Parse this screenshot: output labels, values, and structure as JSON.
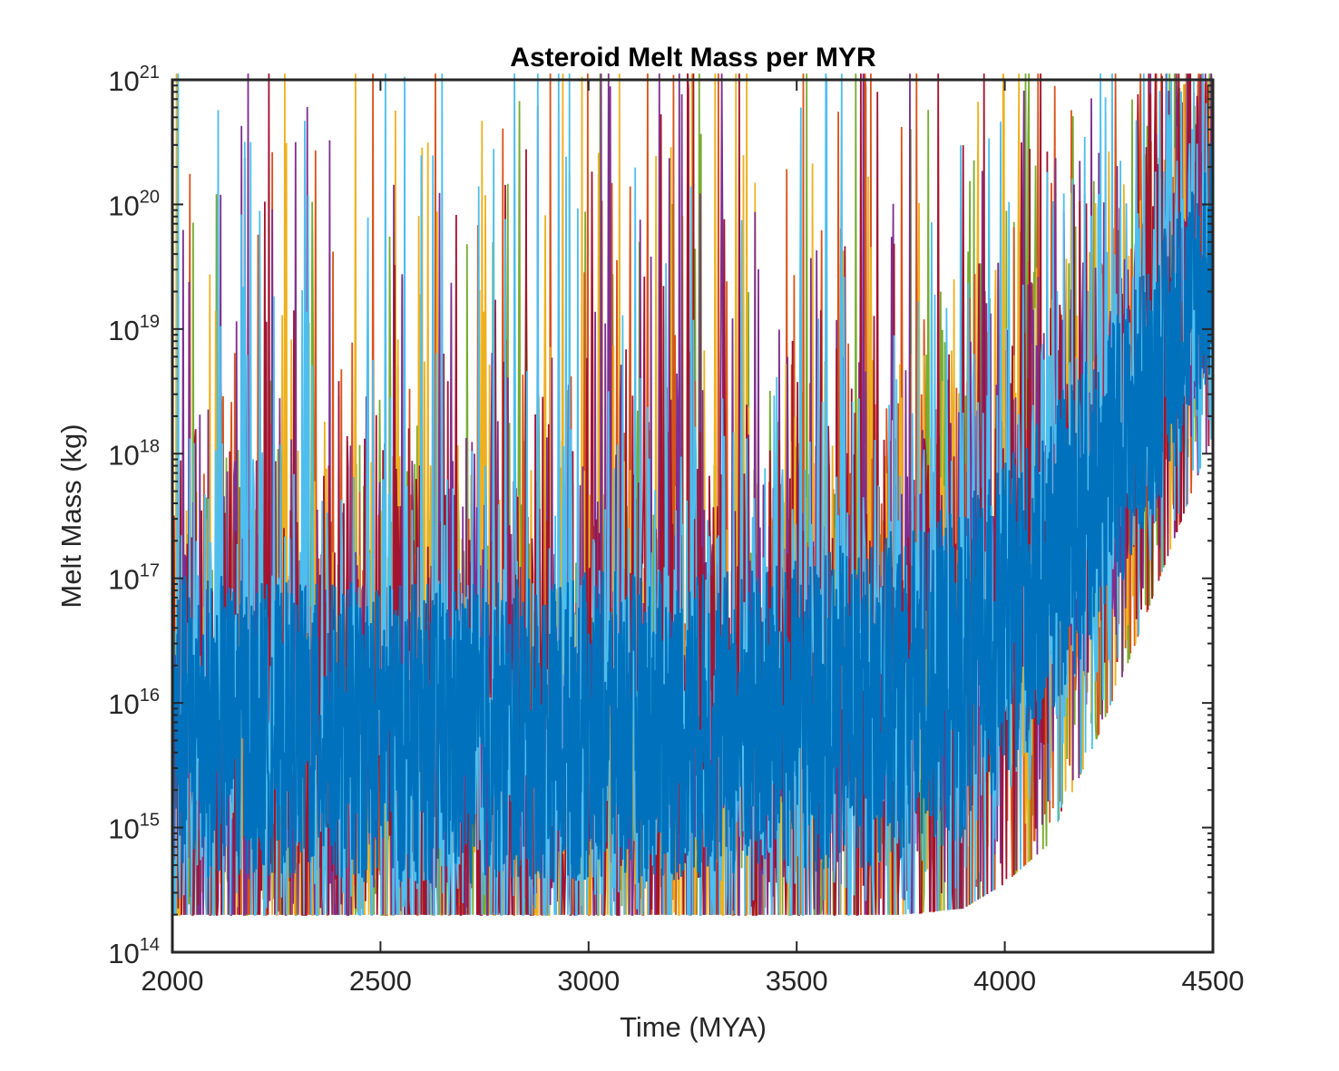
{
  "chart_data": {
    "type": "line",
    "title": "Asteroid Melt Mass per MYR",
    "xlabel": "Time (MYA)",
    "ylabel": "Melt Mass (kg)",
    "xlim": [
      2000,
      4500
    ],
    "ylim": [
      100000000000000.0,
      1e+21
    ],
    "yscale": "log",
    "grid": false,
    "legend": "none",
    "x_ticks": [
      "2000",
      "2500",
      "3000",
      "3500",
      "4000",
      "4500"
    ],
    "x_tick_values": [
      2000,
      2500,
      3000,
      3500,
      4000,
      4500
    ],
    "y_ticks": [
      {
        "base": "10",
        "exp": "14",
        "value": 100000000000000.0
      },
      {
        "base": "10",
        "exp": "15",
        "value": 1000000000000000.0
      },
      {
        "base": "10",
        "exp": "16",
        "value": 1e+16
      },
      {
        "base": "10",
        "exp": "17",
        "value": 1e+17
      },
      {
        "base": "10",
        "exp": "18",
        "value": 1e+18
      },
      {
        "base": "10",
        "exp": "19",
        "value": 1e+19
      },
      {
        "base": "10",
        "exp": "20",
        "value": 1e+20
      },
      {
        "base": "10",
        "exp": "21",
        "value": 1e+21
      }
    ],
    "series_colors": [
      "#77AC30",
      "#D95319",
      "#EDB120",
      "#7E2F8E",
      "#A2142F",
      "#4DBEEE",
      "#0072BD"
    ],
    "series_envelope": {
      "x": [
        2000,
        2250,
        2500,
        2750,
        3000,
        3250,
        3500,
        3750,
        3900,
        4000,
        4100,
        4200,
        4300,
        4400,
        4500
      ],
      "median_log10": [
        15.7,
        15.6,
        15.55,
        15.55,
        15.6,
        15.65,
        15.8,
        16.1,
        16.4,
        16.8,
        17.2,
        17.7,
        18.3,
        19.0,
        19.8
      ],
      "typical_low_log10": [
        14.6,
        14.6,
        14.55,
        14.55,
        14.55,
        14.55,
        14.6,
        14.7,
        14.9,
        15.3,
        15.8,
        16.4,
        17.1,
        17.8,
        18.6
      ],
      "typical_high_log10": [
        17.5,
        17.4,
        17.4,
        17.4,
        17.5,
        17.5,
        17.6,
        17.9,
        18.1,
        18.4,
        18.8,
        19.2,
        19.7,
        20.3,
        20.9
      ],
      "floor_log10": [
        14.35,
        14.35,
        14.35,
        14.35,
        14.35,
        14.35,
        14.35,
        14.35,
        14.4,
        14.6,
        14.9,
        15.6,
        16.4,
        17.3,
        18.2
      ]
    }
  }
}
